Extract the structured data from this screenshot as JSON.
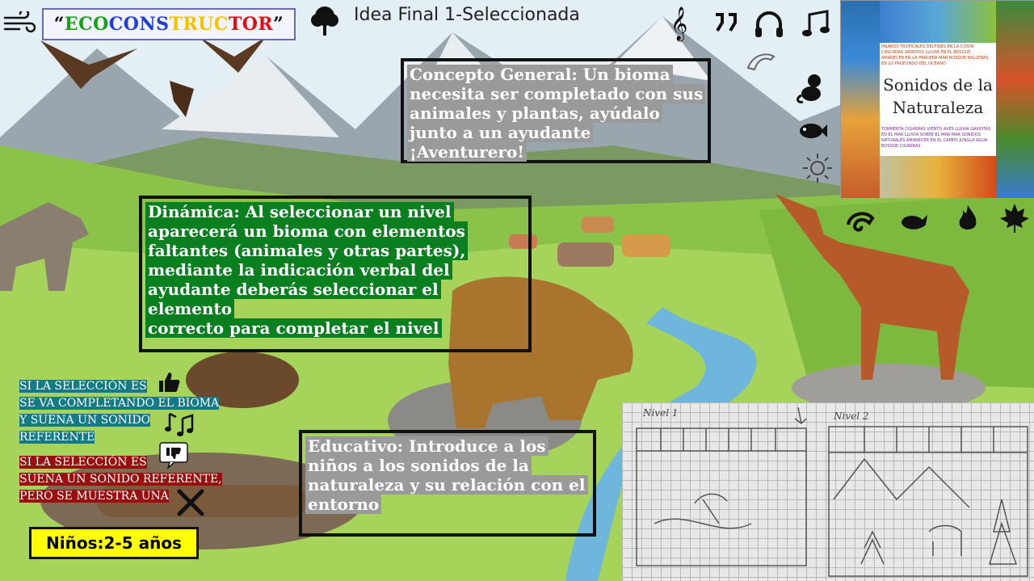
{
  "header": {
    "title_parts": [
      {
        "text": "“",
        "color": "#000000"
      },
      {
        "text": "ECO ",
        "color": "#1a9e1a"
      },
      {
        "text": "CONS",
        "color": "#1f3fd8"
      },
      {
        "text": "TRUC",
        "color": "#f2c200"
      },
      {
        "text": "TOR",
        "color": "#e01010"
      },
      {
        "text": "”",
        "color": "#000000"
      }
    ],
    "idea_label": "Idea Final 1-Seleccionada"
  },
  "concepto": [
    "Concepto General: Un bioma",
    "necesita ser completado con sus",
    "animales y plantas, ayúdalo",
    "junto a un ayudante ¡Aventurero!"
  ],
  "dinamica": [
    "Dinámica: Al seleccionar un nivel",
    "aparecerá un bioma con elementos",
    "faltantes (animales y otras partes),",
    "mediante la indicación verbal del",
    "ayudante deberás seleccionar el elemento",
    "correcto para completar el nivel"
  ],
  "educativo": [
    "Educativo: Introduce a los",
    "niños a los sonidos de la",
    "naturaleza y su relación con el",
    "entorno"
  ],
  "feedback_ok": [
    "SI LA SELECCIÓN ES",
    "SE VA COMPLETANDO EL BIOMA",
    "Y SUENA UN SONIDO",
    "REFERENTE"
  ],
  "feedback_bad": [
    "SI LA SELECCIÓN ES",
    "SUENA UN SONIDO REFERENTE,",
    "PERO SE MUESTRA UNA"
  ],
  "ninos": "Niños:2-5 años",
  "album": {
    "title_line1": "Sonidos de la",
    "title_line2": "Naturaleza",
    "top_words": "PAJAROS TROPICALES DELFINES EN LA COSTA CASCADAS ARROYOS LLUVIA EN EL BOSQUE AMANECER EN LA PRADERA MAR BOSQUE BALLENAS EN LO PROFUNDO DEL OCEANO",
    "bottom_words": "TORMENTA CIGARRAS VIENTO AVES LLUVIA GAVIOTAS EN EL MAR LLUVIA SOBRE EL MAR MAR SONIDOS NATURALES AMANECER EN EL CAMPO JUNGLA AGUA BOSQUE CIGARRAS"
  },
  "sketch": {
    "nivel1": "Nivel 1",
    "nivel2": "Nivel 2"
  },
  "icons": [
    "wind-icon",
    "tree-icon",
    "treble-clef-icon",
    "quotes-icon",
    "headphones-icon",
    "music-note-icon",
    "dolphin-icon",
    "monkey-icon",
    "fish-icon",
    "sun-icon",
    "chameleon-icon",
    "whale-icon",
    "fire-icon",
    "maple-leaf-icon",
    "thumbs-up-icon",
    "music-notes-icon",
    "thumbs-down-icon",
    "close-x-icon"
  ]
}
